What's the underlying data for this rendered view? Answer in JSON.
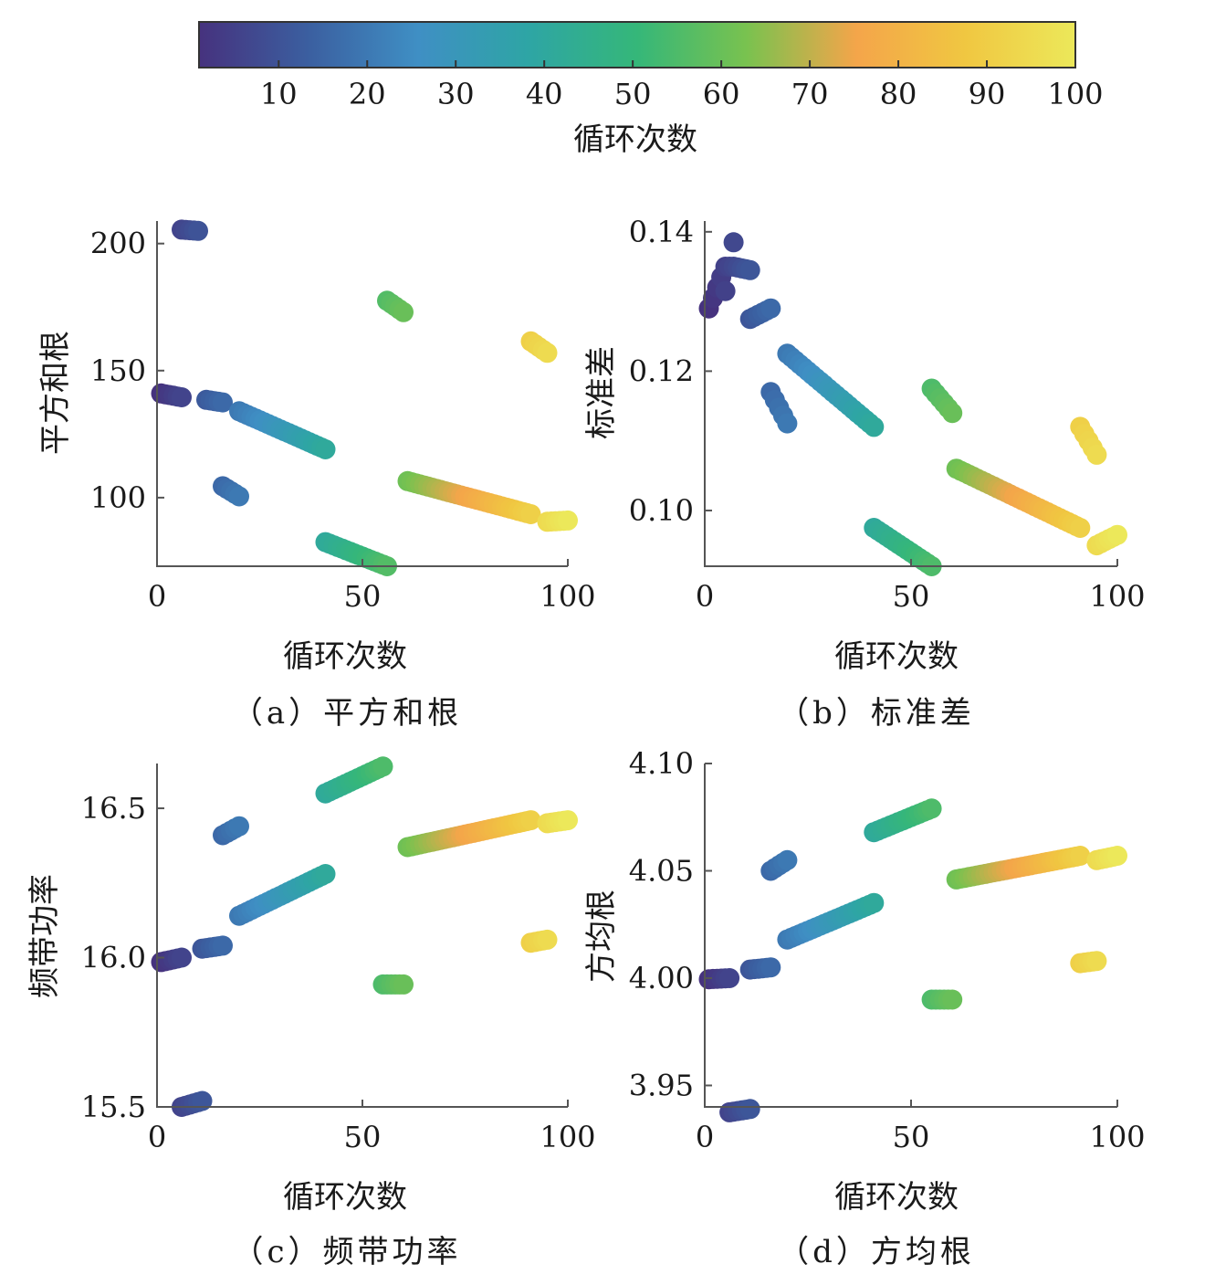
{
  "colorbar": {
    "label": "循环次数",
    "ticks": [
      10,
      20,
      30,
      40,
      50,
      60,
      70,
      80,
      90,
      100
    ],
    "range": [
      1,
      100
    ],
    "stops": [
      "#46327e",
      "#3b5fa0",
      "#3f8fc4",
      "#2ea5a5",
      "#35b779",
      "#79c24f",
      "#f4a54a",
      "#f0c741",
      "#ece85a"
    ]
  },
  "chart_data": [
    {
      "id": "a",
      "type": "scatter",
      "caption": "（a）平方和根",
      "xlabel": "循环次数",
      "ylabel": "平方和根",
      "xlim": [
        0,
        100
      ],
      "ylim": [
        73,
        206
      ],
      "xticks": [
        0,
        50,
        100
      ],
      "yticks": [
        100,
        150,
        200
      ],
      "segments": [
        {
          "x": [
            6,
            10
          ],
          "y": [
            205.5,
            205
          ]
        },
        {
          "x": [
            1,
            6
          ],
          "y": [
            141,
            139.5
          ]
        },
        {
          "x": [
            12,
            16
          ],
          "y": [
            138.5,
            137.5
          ]
        },
        {
          "x": [
            16,
            20
          ],
          "y": [
            104.5,
            100.5
          ]
        },
        {
          "x": [
            20,
            41
          ],
          "y": [
            134,
            119
          ]
        },
        {
          "x": [
            41,
            56
          ],
          "y": [
            82.5,
            73
          ]
        },
        {
          "x": [
            56,
            60
          ],
          "y": [
            177.5,
            173
          ]
        },
        {
          "x": [
            61,
            91
          ],
          "y": [
            106.5,
            93.5
          ]
        },
        {
          "x": [
            91,
            95
          ],
          "y": [
            161.5,
            157
          ]
        },
        {
          "x": [
            95,
            100
          ],
          "y": [
            90.5,
            91
          ]
        }
      ]
    },
    {
      "id": "b",
      "type": "scatter",
      "caption": "（b）标准差",
      "xlabel": "循环次数",
      "ylabel": "标准差",
      "xlim": [
        0,
        100
      ],
      "ylim": [
        0.092,
        0.1405
      ],
      "xticks": [
        0,
        50,
        100
      ],
      "yticks": [
        "0.10",
        "0.12",
        "0.14"
      ],
      "segments": [
        {
          "x": [
            1,
            5
          ],
          "y": [
            0.129,
            0.135
          ]
        },
        {
          "x": [
            5,
            7
          ],
          "y": [
            0.1315,
            0.1385
          ]
        },
        {
          "x": [
            7,
            11
          ],
          "y": [
            0.135,
            0.1345
          ]
        },
        {
          "x": [
            11,
            16
          ],
          "y": [
            0.1275,
            0.129
          ]
        },
        {
          "x": [
            16,
            20
          ],
          "y": [
            0.117,
            0.1125
          ]
        },
        {
          "x": [
            20,
            41
          ],
          "y": [
            0.1225,
            0.112
          ]
        },
        {
          "x": [
            41,
            55
          ],
          "y": [
            0.0975,
            0.092
          ]
        },
        {
          "x": [
            55,
            60
          ],
          "y": [
            0.1175,
            0.114
          ]
        },
        {
          "x": [
            61,
            91
          ],
          "y": [
            0.106,
            0.0975
          ]
        },
        {
          "x": [
            91,
            95
          ],
          "y": [
            0.112,
            0.108
          ]
        },
        {
          "x": [
            95,
            100
          ],
          "y": [
            0.095,
            0.0965
          ]
        }
      ]
    },
    {
      "id": "c",
      "type": "scatter",
      "caption": "（c）频带功率",
      "xlabel": "循环次数",
      "ylabel": "频带功率",
      "xlim": [
        0,
        100
      ],
      "ylim": [
        15.5,
        16.65
      ],
      "xticks": [
        0,
        50,
        100
      ],
      "yticks": [
        "15.5",
        "16.0",
        "16.5"
      ],
      "segments": [
        {
          "x": [
            1,
            6
          ],
          "y": [
            15.985,
            16.0
          ]
        },
        {
          "x": [
            6,
            11
          ],
          "y": [
            15.5,
            15.52
          ]
        },
        {
          "x": [
            11,
            16
          ],
          "y": [
            16.03,
            16.04
          ]
        },
        {
          "x": [
            16,
            20
          ],
          "y": [
            16.41,
            16.44
          ]
        },
        {
          "x": [
            20,
            41
          ],
          "y": [
            16.14,
            16.28
          ]
        },
        {
          "x": [
            41,
            55
          ],
          "y": [
            16.55,
            16.64
          ]
        },
        {
          "x": [
            55,
            60
          ],
          "y": [
            15.91,
            15.91
          ]
        },
        {
          "x": [
            61,
            91
          ],
          "y": [
            16.37,
            16.46
          ]
        },
        {
          "x": [
            91,
            95
          ],
          "y": [
            16.05,
            16.06
          ]
        },
        {
          "x": [
            95,
            100
          ],
          "y": [
            16.45,
            16.46
          ]
        }
      ]
    },
    {
      "id": "d",
      "type": "scatter",
      "caption": "（d）方均根",
      "xlabel": "循环次数",
      "ylabel": "方均根",
      "xlim": [
        0,
        100
      ],
      "ylim": [
        3.94,
        4.1
      ],
      "xticks": [
        0,
        50,
        100
      ],
      "yticks": [
        "3.95",
        "4.00",
        "4.05",
        "4.10"
      ],
      "segments": [
        {
          "x": [
            1,
            6
          ],
          "y": [
            3.9995,
            4.0
          ]
        },
        {
          "x": [
            6,
            11
          ],
          "y": [
            3.9375,
            3.939
          ]
        },
        {
          "x": [
            11,
            16
          ],
          "y": [
            4.004,
            4.005
          ]
        },
        {
          "x": [
            16,
            20
          ],
          "y": [
            4.05,
            4.055
          ]
        },
        {
          "x": [
            20,
            41
          ],
          "y": [
            4.018,
            4.035
          ]
        },
        {
          "x": [
            41,
            55
          ],
          "y": [
            4.068,
            4.079
          ]
        },
        {
          "x": [
            55,
            60
          ],
          "y": [
            3.99,
            3.99
          ]
        },
        {
          "x": [
            61,
            91
          ],
          "y": [
            4.046,
            4.057
          ]
        },
        {
          "x": [
            91,
            95
          ],
          "y": [
            4.007,
            4.008
          ]
        },
        {
          "x": [
            95,
            100
          ],
          "y": [
            4.055,
            4.057
          ]
        }
      ]
    }
  ]
}
